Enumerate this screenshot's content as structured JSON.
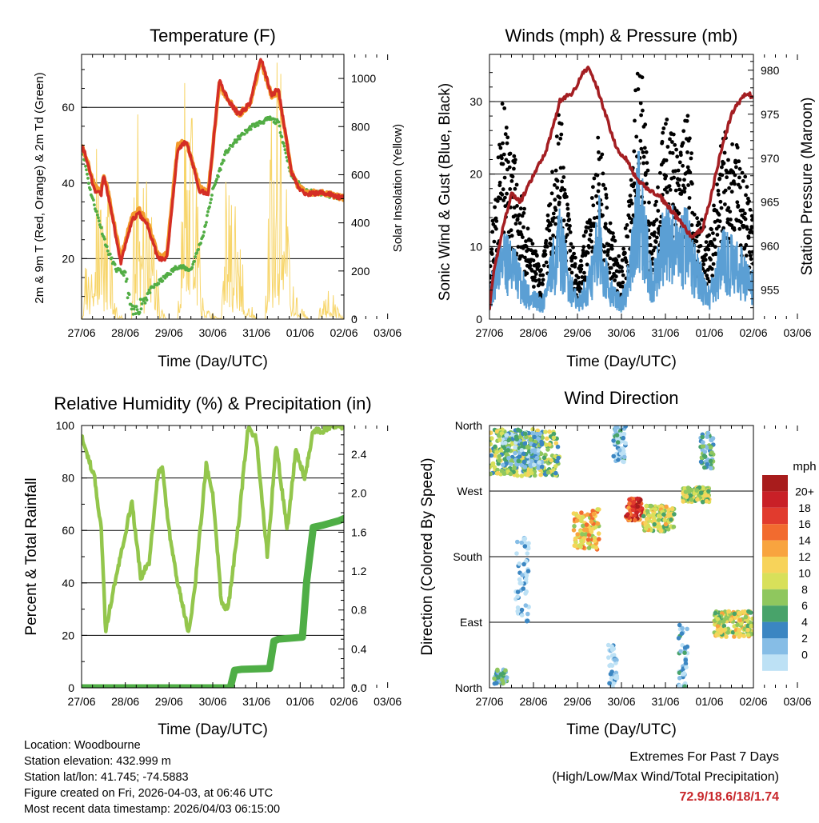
{
  "colors": {
    "temp_red": "#d42e25",
    "temp_orange": "#f39a2b",
    "dewpoint_green": "#52ad45",
    "solar_yellow": "#f7d56a",
    "gust_black": "#000000",
    "wind_blue": "#5b9fd4",
    "pressure_maroon": "#a41e22",
    "rh_lightgreen": "#93c64c",
    "rain_green": "#4fae46",
    "extremes_red": "#c8262a"
  },
  "info": {
    "location": "Location: Woodbourne",
    "elevation": "Station elevation: 432.999 m",
    "latlon": "Station lat/lon: 41.745; -74.5883",
    "created": "Figure created on Fri, 2026-04-03, at 06:46 UTC",
    "recent": "Most recent data timestamp: 2026/04/03 06:15:00"
  },
  "extremes": {
    "title": "Extremes For Past 7 Days",
    "subtitle": "(High/Low/Max Wind/Total Precipitation)",
    "values": "72.9/18.6/18/1.74"
  },
  "chart_data": [
    {
      "id": "temperature",
      "type": "line",
      "title": "Temperature (F)",
      "xlabel": "Time (Day/UTC)",
      "ylabel": "2m & 9m T (Red, Orange) & 2m Td (Green)",
      "ylabel_right": "Solar Insolation (Yellow)",
      "xlim": [
        0,
        6
      ],
      "ylim": [
        4,
        74
      ],
      "ylim_right": [
        0,
        1100
      ],
      "x_ticks": [
        "27/06",
        "28/06",
        "29/06",
        "30/06",
        "31/06",
        "01/06",
        "02/06",
        "03/06"
      ],
      "y_ticks": [
        20,
        40,
        60
      ],
      "y_ticks_right": [
        0,
        200,
        400,
        600,
        800,
        1000
      ],
      "gridlines": [
        20,
        40,
        60
      ],
      "series": [
        {
          "name": "2m T",
          "color_key": "temp_red",
          "x": [
            0,
            0.1,
            0.3,
            0.45,
            0.5,
            0.6,
            0.9,
            1.15,
            1.3,
            1.5,
            1.75,
            1.95,
            2.2,
            2.4,
            2.7,
            2.9,
            3.15,
            3.35,
            3.6,
            3.85,
            4.1,
            4.35,
            4.5,
            4.8,
            4.95,
            5.15,
            5.5,
            6.0
          ],
          "values": [
            50,
            47,
            38,
            37,
            42,
            37,
            19,
            30,
            32,
            29,
            20,
            20,
            49,
            51,
            38,
            37,
            67,
            62,
            58,
            61,
            73,
            63,
            65,
            43,
            39,
            37,
            37.5,
            36
          ]
        },
        {
          "name": "9m T",
          "color_key": "temp_orange",
          "x": [
            0,
            0.1,
            0.3,
            0.45,
            0.5,
            0.6,
            0.9,
            1.15,
            1.3,
            1.5,
            1.75,
            1.95,
            2.2,
            2.4,
            2.7,
            2.9,
            3.15,
            3.35,
            3.6,
            3.85,
            4.1,
            4.35,
            4.5,
            4.8,
            4.95,
            5.15,
            5.5,
            6.0
          ],
          "values": [
            50,
            47,
            39,
            38,
            42,
            38,
            20,
            31,
            33,
            30,
            21,
            21,
            50,
            51,
            39,
            38,
            66,
            62,
            58,
            61,
            72,
            63,
            64,
            43,
            39,
            37.5,
            37.5,
            36
          ]
        },
        {
          "name": "2m Td",
          "color_key": "dewpoint_green",
          "x": [
            0,
            0.2,
            0.4,
            0.6,
            0.8,
            1.0,
            1.1,
            1.2,
            1.4,
            1.6,
            1.8,
            2.0,
            2.2,
            2.5,
            2.8,
            3.0,
            3.3,
            3.6,
            3.9,
            4.1,
            4.3,
            4.5,
            4.8,
            5.1,
            5.5,
            6.0
          ],
          "values": [
            50,
            38,
            30,
            22,
            17,
            16,
            8,
            5,
            9,
            12,
            14,
            16,
            18,
            17,
            27,
            38,
            48,
            52,
            55,
            56,
            57,
            56,
            42,
            38,
            37,
            36
          ]
        },
        {
          "name": "Solar Insolation",
          "axis": "right",
          "color_key": "solar_yellow",
          "x": [
            0,
            0.25,
            0.4,
            0.5,
            0.6,
            0.75,
            0.95,
            1.15,
            1.25,
            1.35,
            1.55,
            1.8,
            1.95,
            2.2,
            2.35,
            2.55,
            2.8,
            3.2,
            3.35,
            3.5,
            3.8,
            4.0,
            4.2,
            4.35,
            4.55,
            4.8,
            5.2,
            5.4,
            5.6,
            5.8,
            6.0
          ],
          "values": [
            0,
            600,
            720,
            320,
            600,
            80,
            0,
            0,
            1000,
            650,
            520,
            60,
            0,
            0,
            1000,
            800,
            50,
            0,
            950,
            600,
            100,
            0,
            0,
            1050,
            1000,
            150,
            0,
            0,
            160,
            80,
            0
          ]
        }
      ]
    },
    {
      "id": "winds",
      "type": "scatter",
      "title": "Winds (mph) & Pressure (mb)",
      "xlabel": "Time (Day/UTC)",
      "ylabel": "Sonic Wind & Gust (Blue, Black)",
      "ylabel_right": "Station Pressure (Maroon)",
      "xlim": [
        0,
        6
      ],
      "ylim": [
        0,
        36.5
      ],
      "ylim_right": [
        951.7,
        981.8
      ],
      "x_ticks": [
        "27/06",
        "28/06",
        "29/06",
        "30/06",
        "31/06",
        "01/06",
        "02/06",
        "03/06"
      ],
      "y_ticks": [
        0,
        10,
        20,
        30
      ],
      "y_ticks_right": [
        955,
        960,
        965,
        970,
        975,
        980
      ],
      "gridlines": [
        10,
        20,
        30
      ],
      "series": [
        {
          "name": "Gust",
          "color_key": "gust_black",
          "x": [
            0,
            0.3,
            0.6,
            0.9,
            1.2,
            1.4,
            1.6,
            1.8,
            2.0,
            2.3,
            2.5,
            2.7,
            3.0,
            3.2,
            3.4,
            3.7,
            3.9,
            4.1,
            4.3,
            4.5,
            4.7,
            5.0,
            5.3,
            5.6,
            5.8,
            6.0
          ],
          "values": [
            6,
            21,
            15,
            8,
            5,
            13,
            21,
            10,
            5,
            11,
            19,
            10,
            5,
            13,
            29,
            8,
            17,
            21,
            15,
            21,
            11,
            8,
            18,
            17,
            14,
            10
          ]
        },
        {
          "name": "Wind",
          "color_key": "wind_blue",
          "x": [
            0,
            0.3,
            0.6,
            0.9,
            1.2,
            1.4,
            1.6,
            1.8,
            2.0,
            2.3,
            2.5,
            2.7,
            3.0,
            3.2,
            3.4,
            3.7,
            3.9,
            4.1,
            4.3,
            4.5,
            4.7,
            5.0,
            5.3,
            5.6,
            5.8,
            6.0
          ],
          "values": [
            3,
            9,
            6,
            3,
            2,
            6,
            10,
            5,
            2,
            5,
            11,
            4,
            2,
            6,
            16,
            4,
            9,
            11,
            8,
            11,
            6,
            3,
            8,
            7,
            6,
            4
          ]
        },
        {
          "name": "Station Pressure",
          "axis": "right",
          "color_key": "pressure_maroon",
          "x": [
            0,
            0.1,
            0.3,
            0.5,
            0.7,
            0.9,
            1.1,
            1.3,
            1.6,
            1.9,
            2.1,
            2.25,
            2.45,
            2.7,
            2.9,
            3.1,
            3.35,
            3.6,
            3.9,
            4.3,
            4.6,
            4.85,
            5.05,
            5.25,
            5.5,
            5.75,
            5.9,
            6.0
          ],
          "values": [
            953,
            957,
            962,
            966,
            965,
            967,
            969,
            971,
            976.5,
            977.5,
            979.5,
            980.3,
            978,
            974,
            971,
            970,
            967.5,
            966.5,
            965.5,
            963,
            961,
            962,
            966,
            970.5,
            975,
            977,
            977.3,
            976.8
          ]
        }
      ],
      "gust_highlight_points": [
        {
          "x": 3.42,
          "y": 33.5
        }
      ]
    },
    {
      "id": "humidity",
      "type": "line",
      "title": "Relative Humidity (%) & Precipitation (in)",
      "xlabel": "Time (Day/UTC)",
      "ylabel": "Percent & Total Rainfall",
      "xlim": [
        0,
        6
      ],
      "ylim": [
        0,
        100
      ],
      "ylim_right": [
        0,
        2.6966
      ],
      "x_ticks": [
        "27/06",
        "28/06",
        "29/06",
        "30/06",
        "31/06",
        "01/06",
        "02/06",
        "03/06"
      ],
      "y_ticks": [
        0,
        20,
        40,
        60,
        80,
        100
      ],
      "y_ticks_right": [
        "0.0",
        "0.4",
        "0.8",
        "1.2",
        "1.6",
        "2.0",
        "2.4"
      ],
      "gridlines": [
        20,
        40,
        60,
        80
      ],
      "series": [
        {
          "name": "Relative Humidity",
          "color_key": "rh_lightgreen",
          "x": [
            0,
            0.1,
            0.3,
            0.45,
            0.55,
            0.7,
            0.95,
            1.15,
            1.35,
            1.55,
            1.75,
            1.85,
            2.0,
            2.2,
            2.45,
            2.6,
            2.85,
            3.0,
            3.2,
            3.35,
            3.6,
            3.8,
            4.0,
            4.25,
            4.45,
            4.7,
            4.9,
            5.1,
            5.3,
            5.5,
            5.7,
            6.0
          ],
          "values": [
            97,
            90,
            80,
            60,
            22,
            35,
            55,
            71,
            42,
            48,
            82,
            84,
            60,
            40,
            21,
            40,
            85,
            75,
            32,
            30,
            64,
            99,
            95,
            50,
            93,
            60,
            91,
            80,
            98,
            98,
            99.6,
            100
          ]
        },
        {
          "name": "Total Precipitation",
          "axis": "right",
          "color_key": "rain_green",
          "x": [
            0,
            3.4,
            3.5,
            3.65,
            4.3,
            4.4,
            4.5,
            5.05,
            5.15,
            5.3,
            5.5,
            5.9,
            6.0
          ],
          "values": [
            0.0,
            0.0,
            0.18,
            0.19,
            0.2,
            0.48,
            0.5,
            0.52,
            1.1,
            1.65,
            1.67,
            1.72,
            1.74
          ]
        }
      ]
    },
    {
      "id": "direction",
      "type": "scatter",
      "title": "Wind Direction",
      "xlabel": "Time (Day/UTC)",
      "ylabel": "Direction (Colored By Speed)",
      "xlim": [
        0,
        6
      ],
      "ylim": [
        0,
        360
      ],
      "x_ticks": [
        "27/06",
        "28/06",
        "29/06",
        "30/06",
        "31/06",
        "01/06",
        "02/06",
        "03/06"
      ],
      "y_ticks": [
        "North",
        "East",
        "South",
        "West",
        "North"
      ],
      "y_tick_values": [
        0,
        90,
        180,
        270,
        360
      ],
      "gridlines": [
        90,
        180,
        270
      ],
      "legend": {
        "title": "mph",
        "labels": [
          "20+",
          "18",
          "16",
          "14",
          "12",
          "10",
          "8",
          "6",
          "4",
          "2",
          "0"
        ],
        "colors": [
          "#a81c1c",
          "#c92027",
          "#e13b2e",
          "#f26b2f",
          "#f8a43f",
          "#f7d35a",
          "#d8e05a",
          "#8fc75e",
          "#48a36a",
          "#3b86c2",
          "#86bde6",
          "#bde1f5"
        ]
      },
      "clusters": [
        {
          "x_range": [
            0.0,
            1.6
          ],
          "dir_range": [
            290,
            355
          ],
          "speed": 8
        },
        {
          "x_range": [
            0.3,
            1.2
          ],
          "dir_range": [
            300,
            350
          ],
          "speed": 4
        },
        {
          "x_range": [
            1.9,
            2.5
          ],
          "dir_range": [
            190,
            245
          ],
          "speed": 12
        },
        {
          "x_range": [
            2.8,
            3.1
          ],
          "dir_range": [
            310,
            360
          ],
          "speed": 2
        },
        {
          "x_range": [
            3.1,
            3.5
          ],
          "dir_range": [
            230,
            260
          ],
          "speed": 18
        },
        {
          "x_range": [
            3.5,
            4.2
          ],
          "dir_range": [
            215,
            250
          ],
          "speed": 10
        },
        {
          "x_range": [
            4.4,
            5.0
          ],
          "dir_range": [
            255,
            275
          ],
          "speed": 9
        },
        {
          "x_range": [
            4.8,
            5.1
          ],
          "dir_range": [
            300,
            350
          ],
          "speed": 5
        },
        {
          "x_range": [
            5.1,
            6.0
          ],
          "dir_range": [
            70,
            105
          ],
          "speed": 10
        },
        {
          "x_range": [
            0.6,
            0.9
          ],
          "dir_range": [
            90,
            210
          ],
          "speed": 1
        },
        {
          "x_range": [
            2.7,
            2.9
          ],
          "dir_range": [
            0,
            60
          ],
          "speed": 1
        },
        {
          "x_range": [
            4.3,
            4.5
          ],
          "dir_range": [
            0,
            90
          ],
          "speed": 3
        },
        {
          "x_range": [
            0.1,
            0.4
          ],
          "dir_range": [
            5,
            25
          ],
          "speed": 5
        }
      ]
    }
  ]
}
